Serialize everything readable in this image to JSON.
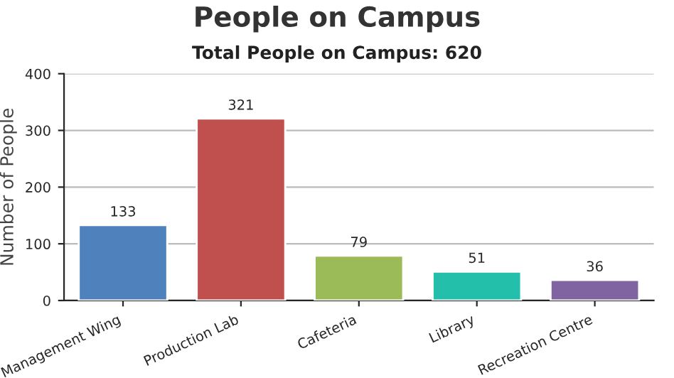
{
  "chart_data": {
    "type": "bar",
    "title": "People on Campus",
    "subtitle": "Total People on Campus: 620",
    "ylabel": "Number of People",
    "categories": [
      "Management Wing",
      "Production Lab",
      "Cafeteria",
      "Library",
      "Recreation Centre"
    ],
    "values": [
      133,
      321,
      79,
      51,
      36
    ],
    "colors": [
      "#4f81bc",
      "#c0504e",
      "#9bbb58",
      "#23bfaa",
      "#8064a1"
    ],
    "ylim": [
      0,
      400
    ],
    "yticks": [
      0,
      100,
      200,
      300,
      400
    ],
    "grid": "y",
    "data_labels": true,
    "legend": false
  }
}
